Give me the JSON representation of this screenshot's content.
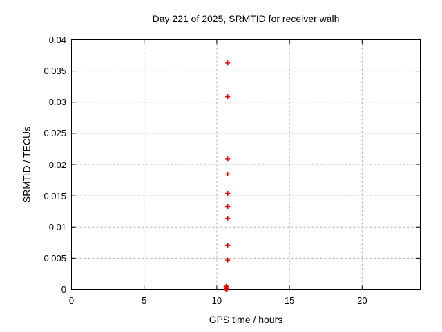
{
  "chart_data": {
    "type": "scatter",
    "title": "Day 221 of 2025, SRMTID for receiver walh",
    "xlabel": "GPS time / hours",
    "ylabel": "SRMTID / TECUs",
    "xlim": [
      0,
      24
    ],
    "ylim": [
      0,
      0.04
    ],
    "xticks": [
      0,
      5,
      10,
      15,
      20
    ],
    "xtick_labels": [
      "0",
      "5",
      "10",
      "15",
      "20"
    ],
    "yticks": [
      0,
      0.005,
      0.01,
      0.015,
      0.02,
      0.025,
      0.03,
      0.035,
      0.04
    ],
    "ytick_labels": [
      "0",
      "0.005",
      "0.01",
      "0.015",
      "0.02",
      "0.025",
      "0.03",
      "0.035",
      "0.04"
    ],
    "grid": true,
    "legend_position": "none",
    "marker": "plus",
    "marker_color": "#e00000",
    "grid_color": "#b0b0b0",
    "axis_color": "#000000",
    "series": [
      {
        "name": "SRMTID",
        "points": [
          {
            "x": 10.75,
            "y": 0.0363
          },
          {
            "x": 10.75,
            "y": 0.0309
          },
          {
            "x": 10.75,
            "y": 0.0209
          },
          {
            "x": 10.75,
            "y": 0.0185
          },
          {
            "x": 10.75,
            "y": 0.0154
          },
          {
            "x": 10.75,
            "y": 0.0133
          },
          {
            "x": 10.75,
            "y": 0.0114
          },
          {
            "x": 10.75,
            "y": 0.0071
          },
          {
            "x": 10.75,
            "y": 0.0047
          },
          {
            "x": 10.63,
            "y": 0.0
          },
          {
            "x": 10.63,
            "y": 0.0004
          },
          {
            "x": 10.66,
            "y": 0.0
          },
          {
            "x": 10.66,
            "y": 0.0002
          },
          {
            "x": 10.66,
            "y": 0.0006
          },
          {
            "x": 10.69,
            "y": 0.0
          },
          {
            "x": 10.69,
            "y": 0.0004
          }
        ]
      }
    ]
  }
}
